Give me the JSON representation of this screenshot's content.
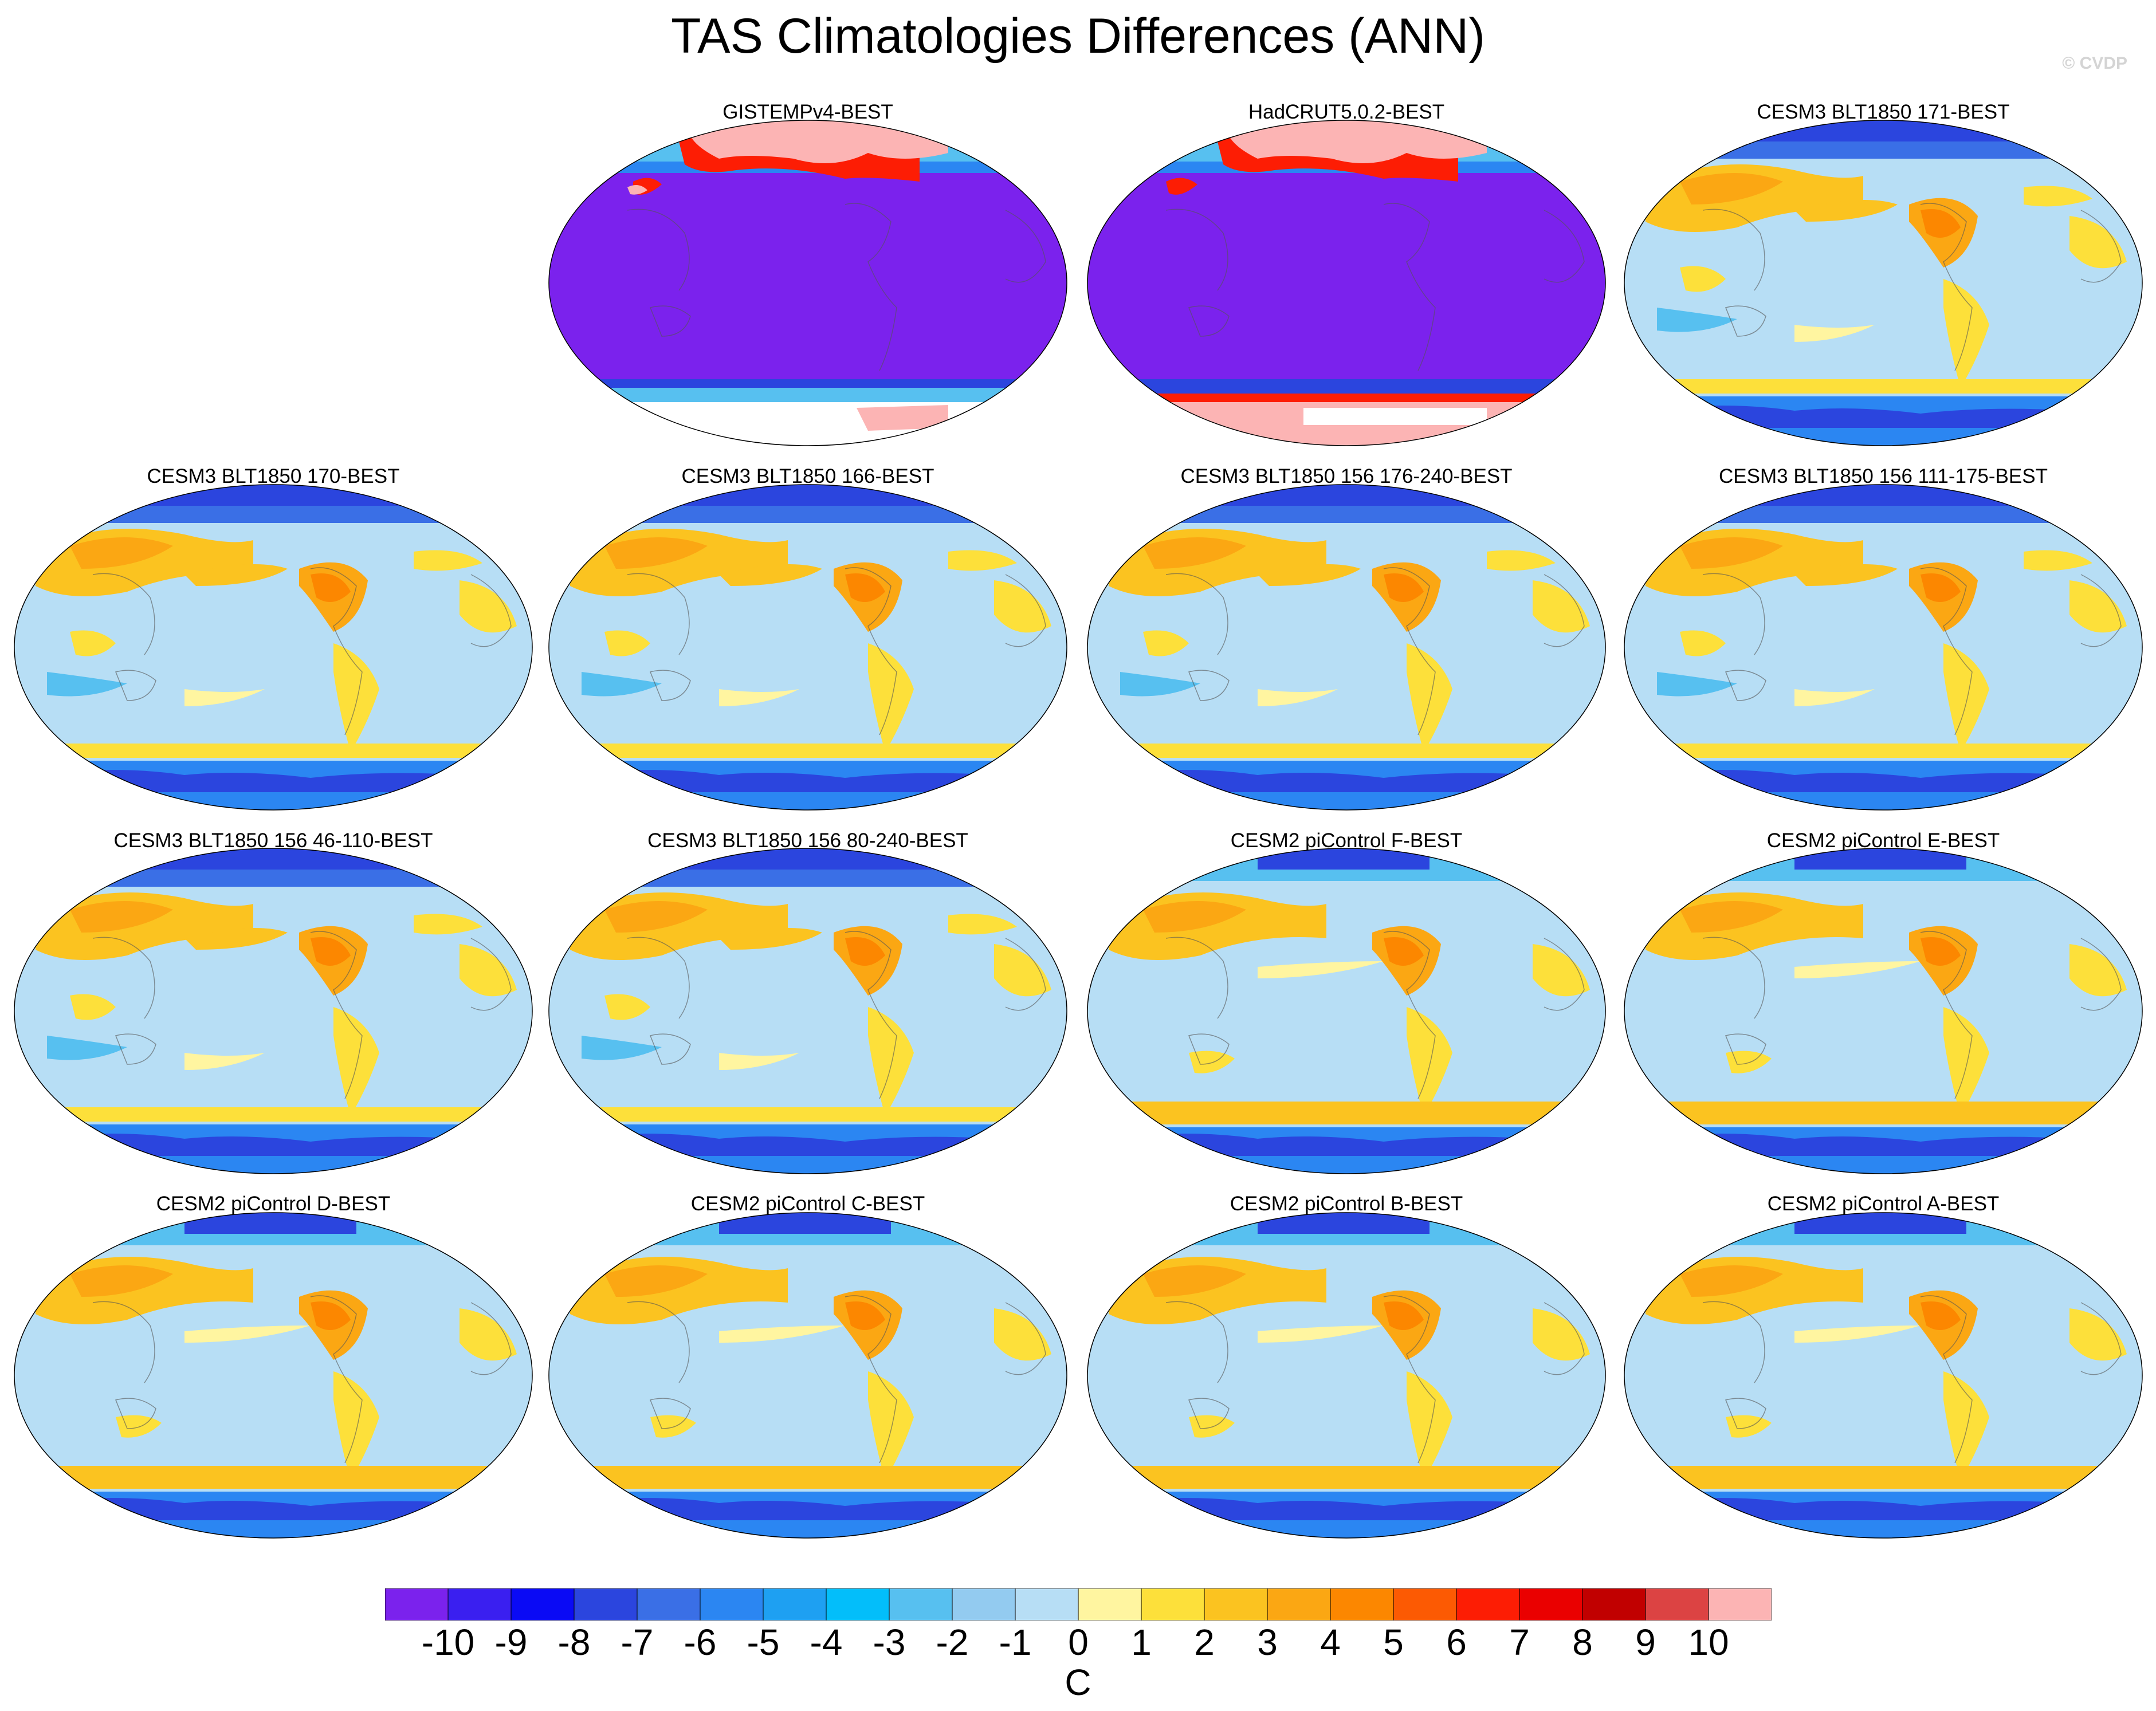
{
  "title": "TAS Climatologies Differences (ANN)",
  "watermark": "© CVDP",
  "panels": [
    {
      "label": "GISTEMPv4-BEST",
      "style": "obs1"
    },
    {
      "label": "HadCRUT5.0.2-BEST",
      "style": "obs2"
    },
    {
      "label": "CESM3 BLT1850 171-BEST",
      "style": "model"
    },
    {
      "label": "CESM3 BLT1850 170-BEST",
      "style": "model"
    },
    {
      "label": "CESM3 BLT1850 166-BEST",
      "style": "model"
    },
    {
      "label": "CESM3 BLT1850 156 176-240-BEST",
      "style": "model"
    },
    {
      "label": "CESM3 BLT1850 156 111-175-BEST",
      "style": "model"
    },
    {
      "label": "CESM3 BLT1850 156 46-110-BEST",
      "style": "model"
    },
    {
      "label": "CESM3 BLT1850 156 80-240-BEST",
      "style": "model"
    },
    {
      "label": "CESM2 piControl F-BEST",
      "style": "cesm2"
    },
    {
      "label": "CESM2 piControl E-BEST",
      "style": "cesm2"
    },
    {
      "label": "CESM2 piControl D-BEST",
      "style": "cesm2"
    },
    {
      "label": "CESM2 piControl C-BEST",
      "style": "cesm2"
    },
    {
      "label": "CESM2 piControl B-BEST",
      "style": "cesm2"
    },
    {
      "label": "CESM2 piControl A-BEST",
      "style": "cesm2"
    }
  ],
  "colorbar": {
    "ticks": [
      "-10",
      "-9",
      "-8",
      "-7",
      "-6",
      "-5",
      "-4",
      "-3",
      "-2",
      "-1",
      "0",
      "1",
      "2",
      "3",
      "4",
      "5",
      "6",
      "7",
      "8",
      "9",
      "10"
    ],
    "colors": [
      "#7b22ed",
      "#3a1ff0",
      "#0a0af5",
      "#2b45de",
      "#3a6fe6",
      "#2b86f2",
      "#1ea0f2",
      "#03befa",
      "#57c0f0",
      "#93cbf0",
      "#b7def5",
      "#fff5a0",
      "#fde03a",
      "#fbc320",
      "#fba713",
      "#fc8700",
      "#fc5a03",
      "#fd1d04",
      "#ea0000",
      "#c10000",
      "#dc4343",
      "#fcb4b4"
    ],
    "units": "C"
  }
}
